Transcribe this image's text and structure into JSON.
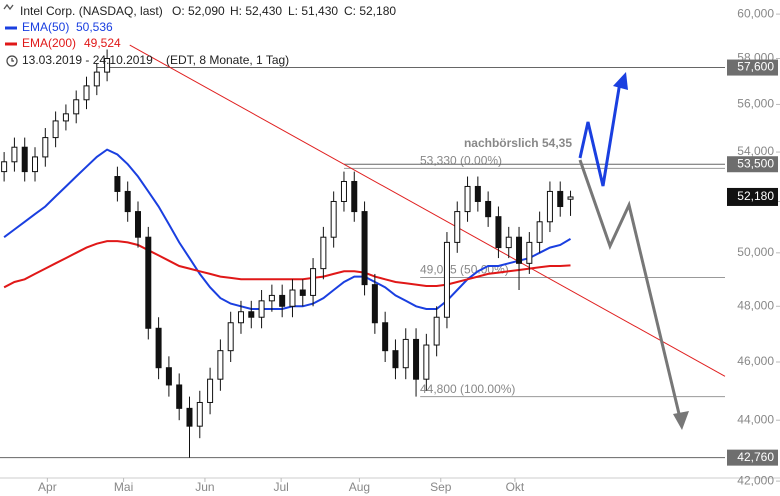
{
  "chart_data": {
    "type": "candlestick",
    "title": "Intel Corp. (NASDAQ, last)",
    "ohlc_labels": [
      "O: 52,090",
      "H: 52,430",
      "L: 51,430",
      "C: 52,180"
    ],
    "period": "13.03.2019 - 24.10.2019",
    "period_note": "(EDT, 8 Monate, 1 Tag)",
    "log_scale": true,
    "ylim": [
      42.1,
      60.65
    ],
    "yticks": [
      {
        "value": 60,
        "label": "60,000"
      },
      {
        "value": 58,
        "label": "58,000"
      },
      {
        "value": 56,
        "label": "56,000"
      },
      {
        "value": 54,
        "label": "54,000"
      },
      {
        "value": 52,
        "label": "52,000"
      },
      {
        "value": 50,
        "label": "50,000"
      },
      {
        "value": 48,
        "label": "48,000"
      },
      {
        "value": 46,
        "label": "46,000"
      },
      {
        "value": 44,
        "label": "44,000"
      },
      {
        "value": 42,
        "label": "42,000"
      }
    ],
    "xlim": [
      -0.4,
      70
    ],
    "xticks": [
      {
        "value": 4.2,
        "label": "Apr"
      },
      {
        "value": 11.6,
        "label": "Mai"
      },
      {
        "value": 19.5,
        "label": "Jun"
      },
      {
        "value": 26.9,
        "label": "Jul"
      },
      {
        "value": 34.5,
        "label": "Aug"
      },
      {
        "value": 42.4,
        "label": "Sep"
      },
      {
        "value": 49.6,
        "label": "Okt"
      }
    ],
    "open": [
      53.2,
      53.6,
      54.2,
      53.2,
      53.8,
      54.6,
      55.3,
      55.6,
      56.2,
      56.8,
      57.4,
      53.0,
      52.4,
      51.6,
      50.6,
      47.2,
      45.8,
      45.2,
      44.4,
      43.8,
      44.6,
      45.4,
      46.4,
      47.4,
      47.8,
      47.6,
      48.2,
      48.4,
      48.0,
      48.6,
      48.4,
      49.4,
      50.6,
      52.0,
      52.8,
      51.6,
      48.8,
      47.4,
      46.4,
      45.8,
      46.8,
      45.4,
      46.6,
      47.6,
      50.4,
      51.6,
      52.6,
      52.0,
      51.4,
      50.2,
      50.6,
      49.6,
      50.4,
      51.2,
      52.4,
      52.09
    ],
    "high": [
      54.0,
      54.6,
      54.6,
      54.2,
      55.0,
      55.7,
      56.0,
      56.6,
      57.2,
      57.8,
      58.4,
      53.4,
      52.8,
      52.0,
      51.0,
      47.6,
      46.2,
      45.6,
      44.8,
      45.0,
      45.8,
      46.8,
      47.8,
      48.2,
      48.2,
      48.6,
      48.8,
      48.8,
      49.0,
      49.0,
      49.8,
      51.0,
      52.4,
      53.2,
      53.2,
      52.0,
      49.2,
      47.8,
      46.8,
      47.2,
      47.2,
      47.0,
      48.0,
      50.8,
      52.0,
      53.0,
      53.0,
      52.4,
      51.8,
      51.0,
      51.0,
      50.8,
      51.6,
      52.8,
      52.8,
      52.43
    ],
    "low": [
      52.8,
      53.2,
      52.8,
      52.8,
      53.4,
      54.2,
      54.9,
      55.2,
      55.8,
      56.4,
      57.0,
      52.0,
      51.2,
      50.2,
      46.8,
      45.4,
      44.8,
      44.0,
      42.76,
      43.4,
      44.2,
      45.0,
      46.0,
      47.0,
      47.2,
      47.2,
      47.8,
      47.6,
      47.6,
      48.0,
      48.0,
      49.0,
      50.2,
      51.6,
      51.2,
      48.4,
      47.0,
      46.0,
      45.4,
      45.4,
      44.8,
      45.0,
      46.2,
      47.2,
      50.0,
      51.2,
      51.6,
      51.0,
      49.8,
      49.8,
      48.6,
      49.2,
      50.0,
      50.8,
      51.4,
      51.43
    ],
    "close": [
      53.6,
      54.2,
      53.2,
      53.8,
      54.6,
      55.3,
      55.6,
      56.2,
      56.8,
      57.4,
      58.0,
      52.4,
      51.6,
      50.6,
      47.2,
      45.8,
      45.2,
      44.4,
      43.8,
      44.6,
      45.4,
      46.4,
      47.4,
      47.8,
      47.6,
      48.2,
      48.4,
      48.0,
      48.6,
      48.4,
      49.4,
      50.6,
      52.0,
      52.8,
      51.6,
      48.8,
      47.4,
      46.4,
      45.8,
      46.8,
      45.4,
      46.6,
      47.6,
      50.4,
      51.6,
      52.6,
      52.0,
      51.4,
      50.2,
      50.6,
      49.6,
      50.4,
      51.2,
      52.4,
      51.8,
      52.18
    ],
    "series": [
      {
        "name": "EMA(50)",
        "color": "#1a3fe0",
        "last_label": "50,536",
        "values": [
          50.6,
          50.9,
          51.2,
          51.5,
          51.8,
          52.2,
          52.6,
          53.0,
          53.4,
          53.8,
          54.1,
          53.9,
          53.5,
          53.0,
          52.4,
          51.8,
          51.1,
          50.4,
          49.8,
          49.2,
          48.7,
          48.3,
          48.1,
          48.0,
          47.9,
          47.9,
          47.9,
          47.9,
          48.0,
          48.0,
          48.1,
          48.3,
          48.6,
          48.9,
          49.1,
          49.1,
          48.9,
          48.7,
          48.4,
          48.2,
          48.0,
          47.9,
          47.9,
          48.2,
          48.6,
          49.0,
          49.3,
          49.5,
          49.5,
          49.6,
          49.7,
          49.8,
          50.0,
          50.2,
          50.3,
          50.536
        ]
      },
      {
        "name": "EMA(200)",
        "color": "#e01818",
        "last_label": "49,524",
        "values": [
          48.7,
          48.9,
          49.0,
          49.2,
          49.4,
          49.6,
          49.8,
          50.0,
          50.2,
          50.35,
          50.45,
          50.45,
          50.4,
          50.3,
          50.1,
          49.9,
          49.7,
          49.5,
          49.4,
          49.3,
          49.2,
          49.1,
          49.05,
          49.0,
          49.0,
          49.0,
          49.0,
          49.0,
          49.0,
          49.0,
          49.05,
          49.1,
          49.2,
          49.3,
          49.3,
          49.25,
          49.1,
          49.0,
          48.9,
          48.85,
          48.8,
          48.75,
          48.75,
          48.8,
          48.9,
          49.0,
          49.1,
          49.2,
          49.25,
          49.3,
          49.35,
          49.4,
          49.45,
          49.5,
          49.5,
          49.524
        ]
      }
    ],
    "trendline": {
      "color": "#e02020",
      "points": [
        [
          12.2,
          58.6
        ],
        [
          70,
          45.5
        ]
      ]
    },
    "levels": [
      {
        "value": 57.6,
        "label": "57,600",
        "from": 9
      },
      {
        "value": 53.5,
        "label": "53,500",
        "from": 33
      },
      {
        "value": 42.76,
        "label": "42,760",
        "from": -0.4
      }
    ],
    "last_price": {
      "value": 52.18,
      "label": "52,180"
    },
    "fib_levels": [
      {
        "value": 53.33,
        "label": "53,330 (0.00%)",
        "from": 33
      },
      {
        "value": 49.065,
        "label": "49,065 (50.00%)",
        "from": 40.4
      },
      {
        "value": 44.8,
        "label": "44,800 (100.00%)",
        "from": 40.4
      }
    ],
    "annotation": {
      "text": "nachbörslich 54,35",
      "value": 54.35
    }
  }
}
